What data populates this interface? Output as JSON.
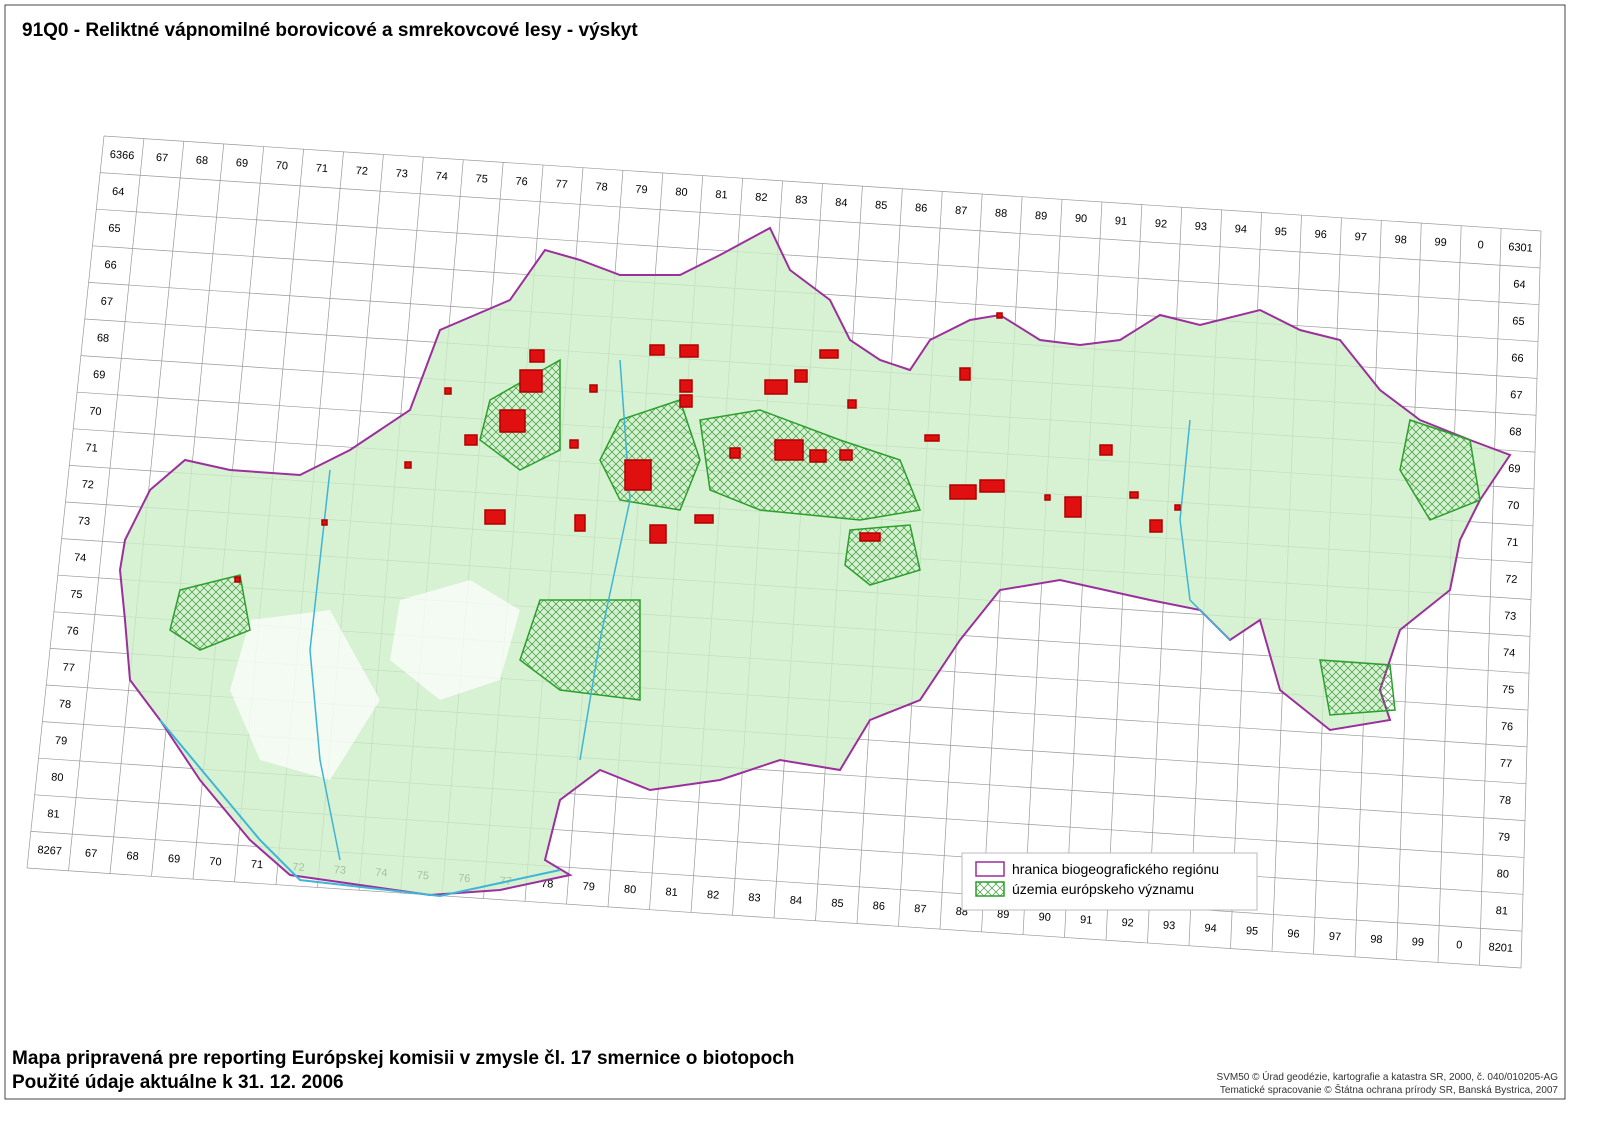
{
  "title": "91Q0 - Reliktné vápnomilné borovicové a smrekovcové lesy - výskyt",
  "grid": {
    "top_labels": [
      "6366",
      "67",
      "68",
      "69",
      "70",
      "71",
      "72",
      "73",
      "74",
      "75",
      "76",
      "77",
      "78",
      "79",
      "80",
      "81",
      "82",
      "83",
      "84",
      "85",
      "86",
      "87",
      "88",
      "89",
      "90",
      "91",
      "92",
      "93",
      "94",
      "95",
      "96",
      "97",
      "98",
      "99",
      "0",
      "6301"
    ],
    "bottom_labels": [
      "8267",
      "67",
      "68",
      "69",
      "70",
      "71",
      "72",
      "73",
      "74",
      "75",
      "76",
      "77",
      "78",
      "79",
      "80",
      "81",
      "82",
      "83",
      "84",
      "85",
      "86",
      "87",
      "88",
      "89",
      "90",
      "91",
      "92",
      "93",
      "94",
      "95",
      "96",
      "97",
      "98",
      "99",
      "0",
      "8201"
    ],
    "left_labels": [
      "64",
      "65",
      "66",
      "67",
      "68",
      "69",
      "70",
      "71",
      "72",
      "73",
      "74",
      "75",
      "76",
      "77",
      "78",
      "79",
      "80",
      "81"
    ],
    "right_labels": [
      "64",
      "65",
      "66",
      "67",
      "68",
      "69",
      "70",
      "71",
      "72",
      "73",
      "74",
      "75",
      "76",
      "77",
      "78",
      "79",
      "80",
      "81"
    ]
  },
  "legend": {
    "items": [
      "hranica biogeografického regiónu",
      "územia európskeho významu"
    ]
  },
  "footer": {
    "lines": [
      "Mapa pripravená pre reporting Európskej komisii v zmysle čl. 17 smernice o biotopoch",
      "Použité údaje aktuálne k 31. 12. 2006"
    ]
  },
  "credits": [
    "SVM50 © Úrad geodézie, kartografie a katastra SR, 2000, č. 040/010205-AG",
    "Tematické spracovanie © Štátna ochrana prírody SR, Banská Bystrica, 2007"
  ]
}
